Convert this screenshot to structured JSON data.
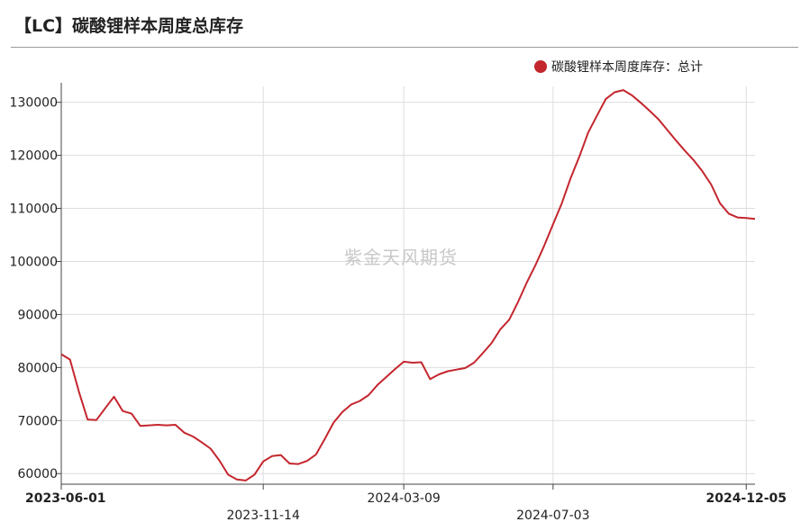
{
  "title": "【LC】碳酸锂样本周度总库存",
  "watermark": "紫金天风期货",
  "colors": {
    "series": "#c4262e",
    "grid": "#dddddd",
    "axis": "#444444"
  },
  "chart_data": {
    "type": "line",
    "title": "",
    "xlabel": "",
    "ylabel": "",
    "ylim": [
      58000,
      133000
    ],
    "yticks": [
      60000,
      70000,
      80000,
      90000,
      100000,
      110000,
      120000,
      130000
    ],
    "x_tick_labels": [
      {
        "label": "2023-06-01",
        "idx": 0,
        "bold": true,
        "row": 1
      },
      {
        "label": "2023-11-14",
        "idx": 23,
        "bold": false,
        "row": 2
      },
      {
        "label": "2024-03-09",
        "idx": 39,
        "bold": false,
        "row": 1
      },
      {
        "label": "2024-07-03",
        "idx": 56,
        "bold": false,
        "row": 2
      },
      {
        "label": "2024-12-05",
        "idx": 78,
        "bold": true,
        "row": 1
      }
    ],
    "series": [
      {
        "name": "碳酸锂样本周度库存：总计",
        "values": [
          82500,
          81500,
          75500,
          70200,
          70100,
          72300,
          74500,
          71800,
          71300,
          69000,
          69100,
          69200,
          69100,
          69200,
          67700,
          67000,
          65900,
          64700,
          62500,
          59800,
          58900,
          58700,
          59800,
          62300,
          63300,
          63500,
          61900,
          61800,
          62400,
          63600,
          66500,
          69600,
          71600,
          73000,
          73700,
          74800,
          76700,
          78200,
          79700,
          81100,
          80900,
          81000,
          77800,
          78700,
          79300,
          79600,
          79900,
          80900,
          82700,
          84600,
          87200,
          89000,
          92300,
          96000,
          99300,
          103000,
          107000,
          111000,
          115700,
          119800,
          124300,
          127500,
          130600,
          131900,
          132300,
          131300,
          129900,
          128400,
          126800,
          124800,
          122800,
          120900,
          119100,
          117000,
          114500,
          111000,
          109000,
          108300,
          108200,
          108000
        ]
      }
    ]
  }
}
